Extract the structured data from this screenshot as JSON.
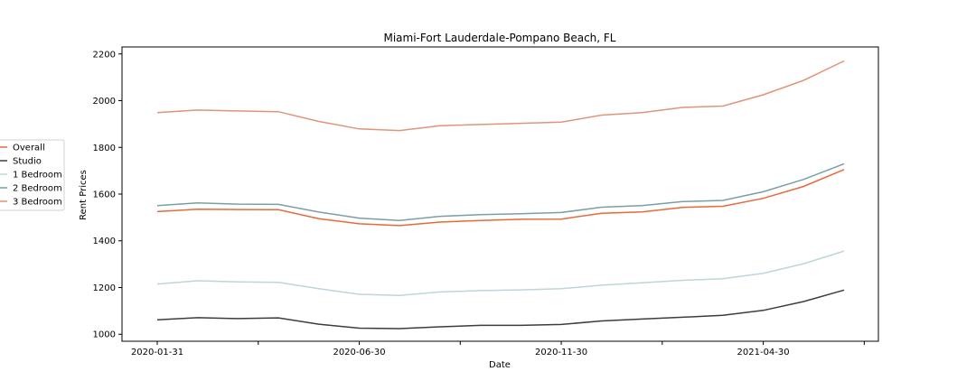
{
  "chart_data": {
    "type": "line",
    "title": "Miami-Fort Lauderdale-Pompano Beach, FL",
    "xlabel": "Date",
    "ylabel": "Rent Prices",
    "x": [
      "2020-01-31",
      "2020-02-29",
      "2020-03-31",
      "2020-04-30",
      "2020-05-31",
      "2020-06-30",
      "2020-07-31",
      "2020-08-31",
      "2020-09-30",
      "2020-10-31",
      "2020-11-30",
      "2020-12-31",
      "2021-01-31",
      "2021-02-28",
      "2021-03-31",
      "2021-04-30",
      "2021-05-31",
      "2021-06-30"
    ],
    "xtick_labels": [
      "2020-01-31",
      "2020-06-30",
      "2020-11-30",
      "2021-04-30"
    ],
    "ylim": [
      970,
      2230
    ],
    "yticks": [
      1000,
      1200,
      1400,
      1600,
      1800,
      2000,
      2200
    ],
    "grid": false,
    "legend_position": "outside-left",
    "series": [
      {
        "name": "Overall",
        "color": "#e8693a",
        "values": [
          1525,
          1535,
          1534,
          1533,
          1495,
          1473,
          1465,
          1480,
          1487,
          1492,
          1493,
          1518,
          1524,
          1543,
          1548,
          1582,
          1633,
          1705
        ]
      },
      {
        "name": "Studio",
        "color": "#3d3d3d",
        "values": [
          1062,
          1071,
          1067,
          1070,
          1043,
          1026,
          1024,
          1032,
          1038,
          1038,
          1042,
          1057,
          1065,
          1073,
          1081,
          1102,
          1140,
          1189
        ]
      },
      {
        "name": "1 Bedroom",
        "color": "#bcd6d9",
        "values": [
          1215,
          1229,
          1224,
          1222,
          1195,
          1171,
          1166,
          1181,
          1187,
          1190,
          1195,
          1210,
          1220,
          1231,
          1238,
          1261,
          1302,
          1356
        ]
      },
      {
        "name": "2 Bedroom",
        "color": "#7c9fa3",
        "values": [
          1551,
          1562,
          1557,
          1556,
          1523,
          1497,
          1487,
          1505,
          1512,
          1516,
          1521,
          1544,
          1551,
          1568,
          1573,
          1610,
          1663,
          1730
        ]
      },
      {
        "name": "3 Bedroom",
        "color": "#e0957a",
        "values": [
          1949,
          1960,
          1956,
          1953,
          1911,
          1879,
          1872,
          1893,
          1898,
          1903,
          1908,
          1938,
          1949,
          1971,
          1977,
          2025,
          2087,
          2170
        ]
      }
    ]
  }
}
